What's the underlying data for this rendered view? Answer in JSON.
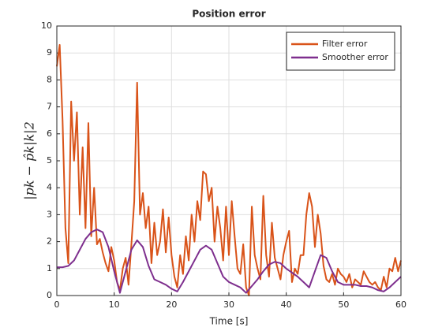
{
  "chart_data": {
    "type": "line",
    "title": "Position error",
    "xlabel": "Time [s]",
    "ylabel": "|pk − p̂k|k|2",
    "xlim": [
      0,
      60
    ],
    "xticks": [
      0,
      10,
      20,
      30,
      40,
      50,
      60
    ],
    "ylim": [
      0,
      10
    ],
    "yticks": [
      0,
      1,
      2,
      3,
      4,
      5,
      6,
      7,
      8,
      9,
      10
    ],
    "grid": true,
    "legend": "northeast",
    "series": [
      {
        "name": "Filter error",
        "color": "#d95319",
        "x": [
          0,
          0.5,
          1,
          1.5,
          2,
          2.5,
          3,
          3.5,
          4,
          4.5,
          5,
          5.5,
          6,
          6.5,
          7,
          7.5,
          8,
          8.5,
          9,
          9.5,
          10,
          10.5,
          11,
          11.5,
          12,
          12.5,
          13,
          13.5,
          14,
          14.5,
          15,
          15.5,
          16,
          16.5,
          17,
          17.5,
          18,
          18.5,
          19,
          19.5,
          20,
          20.5,
          21,
          21.5,
          22,
          22.5,
          23,
          23.5,
          24,
          24.5,
          25,
          25.5,
          26,
          26.5,
          27,
          27.5,
          28,
          28.5,
          29,
          29.5,
          30,
          30.5,
          31,
          31.5,
          32,
          32.5,
          33,
          33.5,
          34,
          34.5,
          35,
          35.5,
          36,
          36.5,
          37,
          37.5,
          38,
          38.5,
          39,
          39.5,
          40,
          40.5,
          41,
          41.5,
          42,
          42.5,
          43,
          43.5,
          44,
          44.5,
          45,
          45.5,
          46,
          46.5,
          47,
          47.5,
          48,
          48.5,
          49,
          49.5,
          50,
          50.5,
          51,
          51.5,
          52,
          52.5,
          53,
          53.5,
          54,
          54.5,
          55,
          55.5,
          56,
          56.5,
          57,
          57.5,
          58,
          58.5,
          59,
          59.5,
          60
        ],
        "values": [
          8.5,
          9.3,
          6.5,
          2.5,
          1.2,
          7.2,
          5,
          6.8,
          3,
          5.5,
          2.5,
          6.4,
          2.2,
          4,
          1.9,
          2.1,
          1.6,
          1.2,
          0.9,
          1.8,
          1.3,
          0.5,
          0.2,
          1.0,
          1.4,
          0.4,
          1.9,
          3.5,
          7.9,
          3.0,
          3.8,
          2.5,
          3.3,
          1.2,
          2.7,
          1.5,
          2.0,
          3.2,
          1.6,
          2.9,
          1.5,
          0.7,
          0.3,
          1.5,
          0.8,
          2.2,
          1.3,
          3.0,
          2.0,
          3.5,
          2.8,
          4.6,
          4.5,
          3.5,
          4.0,
          2.0,
          3.3,
          2.5,
          1.3,
          3.3,
          1.5,
          3.5,
          2.2,
          1.0,
          0.8,
          1.9,
          0.3,
          0.0,
          3.3,
          1.5,
          1.0,
          0.6,
          3.7,
          1.5,
          0.7,
          2.7,
          1.4,
          1.0,
          0.6,
          1.5,
          2.0,
          2.4,
          0.5,
          1.0,
          0.8,
          1.5,
          1.5,
          3.0,
          3.8,
          3.3,
          1.8,
          3.0,
          2.3,
          1.1,
          0.6,
          0.5,
          0.8,
          0.4,
          1.0,
          0.8,
          0.7,
          0.5,
          0.8,
          0.3,
          0.6,
          0.5,
          0.4,
          0.9,
          0.7,
          0.5,
          0.4,
          0.5,
          0.3,
          0.2,
          0.7,
          0.3,
          1.0,
          0.9,
          1.4,
          0.9,
          1.3
        ]
      },
      {
        "name": "Smoother error",
        "color": "#7e2f8e",
        "x": [
          0,
          1,
          2,
          3,
          4,
          5,
          6,
          7,
          8,
          9,
          10,
          11,
          12,
          13,
          14,
          15,
          16,
          17,
          18,
          19,
          20,
          21,
          22,
          23,
          24,
          25,
          26,
          27,
          28,
          29,
          30,
          31,
          32,
          33,
          34,
          35,
          36,
          37,
          38,
          39,
          40,
          41,
          42,
          43,
          44,
          45,
          46,
          47,
          48,
          49,
          50,
          51,
          52,
          53,
          54,
          55,
          56,
          57,
          58,
          59,
          60
        ],
        "values": [
          1.05,
          1.05,
          1.1,
          1.3,
          1.7,
          2.1,
          2.35,
          2.45,
          2.35,
          1.8,
          0.9,
          0.1,
          0.9,
          1.7,
          2.05,
          1.8,
          1.1,
          0.6,
          0.5,
          0.4,
          0.25,
          0.15,
          0.5,
          0.9,
          1.3,
          1.7,
          1.85,
          1.7,
          1.2,
          0.7,
          0.5,
          0.4,
          0.3,
          0.1,
          0.35,
          0.6,
          0.9,
          1.15,
          1.25,
          1.2,
          1.0,
          0.85,
          0.7,
          0.5,
          0.3,
          0.9,
          1.5,
          1.4,
          0.9,
          0.5,
          0.4,
          0.4,
          0.4,
          0.35,
          0.35,
          0.3,
          0.2,
          0.15,
          0.3,
          0.5,
          0.7
        ]
      }
    ]
  }
}
